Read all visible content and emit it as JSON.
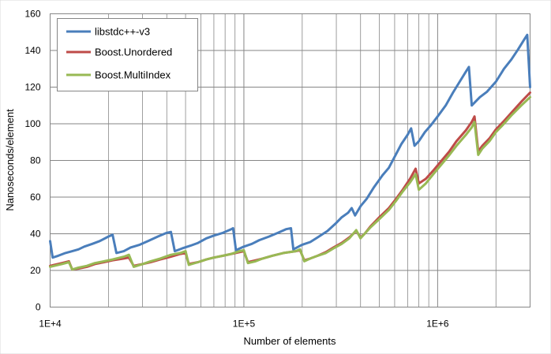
{
  "chart_data": {
    "type": "line",
    "xlabel": "Number of elements",
    "ylabel": "Nanoseconds/element",
    "x_scale": "log",
    "xlim": [
      10000,
      3000000
    ],
    "ylim": [
      0,
      160
    ],
    "x_ticks": [
      10000,
      100000,
      1000000
    ],
    "x_tick_labels": [
      "1E+4",
      "1E+5",
      "1E+6"
    ],
    "y_ticks": [
      0,
      20,
      40,
      60,
      80,
      100,
      120,
      140,
      160
    ],
    "y_tick_labels": [
      "0",
      "20",
      "40",
      "60",
      "80",
      "100",
      "120",
      "140",
      "160"
    ],
    "grid": true,
    "legend_position": "top-left",
    "series": [
      {
        "name": "libstdc++-v3",
        "color": "#4a7ebb",
        "points": [
          [
            10000,
            36
          ],
          [
            10300,
            27
          ],
          [
            11000,
            28
          ],
          [
            12000,
            29.5
          ],
          [
            13000,
            30.5
          ],
          [
            14000,
            31.5
          ],
          [
            15000,
            33
          ],
          [
            16500,
            34.5
          ],
          [
            18000,
            36
          ],
          [
            20000,
            38.5
          ],
          [
            21000,
            39.5
          ],
          [
            22000,
            29.5
          ],
          [
            24000,
            30.5
          ],
          [
            26000,
            32.5
          ],
          [
            29000,
            34
          ],
          [
            32000,
            36
          ],
          [
            36000,
            38.5
          ],
          [
            40000,
            40.5
          ],
          [
            42000,
            41
          ],
          [
            44000,
            30.5
          ],
          [
            48000,
            32
          ],
          [
            53000,
            33.5
          ],
          [
            58000,
            35
          ],
          [
            64000,
            37.5
          ],
          [
            70000,
            39
          ],
          [
            78000,
            40.5
          ],
          [
            86000,
            42.5
          ],
          [
            88000,
            43
          ],
          [
            91000,
            31
          ],
          [
            100000,
            33
          ],
          [
            110000,
            34.5
          ],
          [
            120000,
            36.5
          ],
          [
            135000,
            38.5
          ],
          [
            150000,
            40.5
          ],
          [
            165000,
            42.5
          ],
          [
            175000,
            43
          ],
          [
            180000,
            31.5
          ],
          [
            200000,
            34
          ],
          [
            220000,
            35.5
          ],
          [
            240000,
            38
          ],
          [
            270000,
            41.5
          ],
          [
            300000,
            46
          ],
          [
            320000,
            49
          ],
          [
            345000,
            51.5
          ],
          [
            360000,
            54
          ],
          [
            375000,
            50
          ],
          [
            400000,
            55
          ],
          [
            430000,
            59
          ],
          [
            470000,
            65.5
          ],
          [
            520000,
            72
          ],
          [
            560000,
            76
          ],
          [
            600000,
            82
          ],
          [
            650000,
            89
          ],
          [
            700000,
            94
          ],
          [
            730000,
            97.5
          ],
          [
            760000,
            88
          ],
          [
            800000,
            90.5
          ],
          [
            860000,
            95.5
          ],
          [
            920000,
            99
          ],
          [
            1000000,
            104
          ],
          [
            1100000,
            110
          ],
          [
            1200000,
            117
          ],
          [
            1300000,
            123
          ],
          [
            1400000,
            128.5
          ],
          [
            1450000,
            131
          ],
          [
            1500000,
            110
          ],
          [
            1650000,
            114.5
          ],
          [
            1800000,
            117.5
          ],
          [
            2000000,
            123
          ],
          [
            2200000,
            130
          ],
          [
            2400000,
            135
          ],
          [
            2600000,
            140.5
          ],
          [
            2800000,
            146
          ],
          [
            2900000,
            148.5
          ],
          [
            3000000,
            120
          ]
        ]
      },
      {
        "name": "Boost.Unordered",
        "color": "#be4b48",
        "points": [
          [
            10000,
            22.5
          ],
          [
            10500,
            23
          ],
          [
            11500,
            24
          ],
          [
            12500,
            25
          ],
          [
            13000,
            20.5
          ],
          [
            14000,
            21
          ],
          [
            15500,
            22
          ],
          [
            17000,
            23.5
          ],
          [
            19000,
            24.5
          ],
          [
            21000,
            25.5
          ],
          [
            24000,
            26.5
          ],
          [
            25500,
            27
          ],
          [
            27000,
            22.5
          ],
          [
            30000,
            23.5
          ],
          [
            33000,
            24.5
          ],
          [
            37000,
            26
          ],
          [
            42000,
            27.5
          ],
          [
            47000,
            29
          ],
          [
            50000,
            29.5
          ],
          [
            52000,
            23.5
          ],
          [
            58000,
            24.5
          ],
          [
            64000,
            26
          ],
          [
            70000,
            27
          ],
          [
            78000,
            28
          ],
          [
            86000,
            29
          ],
          [
            95000,
            30
          ],
          [
            100000,
            30.5
          ],
          [
            105000,
            24.5
          ],
          [
            115000,
            25.5
          ],
          [
            125000,
            26.5
          ],
          [
            140000,
            28
          ],
          [
            160000,
            29.5
          ],
          [
            185000,
            30.5
          ],
          [
            195000,
            31
          ],
          [
            205000,
            25.5
          ],
          [
            220000,
            26.5
          ],
          [
            240000,
            28
          ],
          [
            265000,
            30
          ],
          [
            290000,
            32.5
          ],
          [
            320000,
            35
          ],
          [
            350000,
            38
          ],
          [
            380000,
            41.5
          ],
          [
            400000,
            38
          ],
          [
            420000,
            40
          ],
          [
            450000,
            44
          ],
          [
            500000,
            49
          ],
          [
            560000,
            54
          ],
          [
            610000,
            59
          ],
          [
            660000,
            64
          ],
          [
            720000,
            70
          ],
          [
            770000,
            75.5
          ],
          [
            800000,
            67.5
          ],
          [
            870000,
            70
          ],
          [
            950000,
            74.5
          ],
          [
            1050000,
            80
          ],
          [
            1150000,
            85
          ],
          [
            1250000,
            90.5
          ],
          [
            1400000,
            96.5
          ],
          [
            1500000,
            101
          ],
          [
            1550000,
            104
          ],
          [
            1620000,
            85
          ],
          [
            1700000,
            88
          ],
          [
            1850000,
            92
          ],
          [
            2000000,
            97
          ],
          [
            2200000,
            101.5
          ],
          [
            2400000,
            106
          ],
          [
            2700000,
            112
          ],
          [
            3000000,
            117
          ]
        ]
      },
      {
        "name": "Boost.MultiIndex",
        "color": "#98b954",
        "points": [
          [
            10000,
            22
          ],
          [
            10500,
            22.5
          ],
          [
            11500,
            23.5
          ],
          [
            12500,
            24.5
          ],
          [
            13000,
            20.5
          ],
          [
            14000,
            21.5
          ],
          [
            15500,
            22.5
          ],
          [
            17000,
            24
          ],
          [
            19000,
            25
          ],
          [
            21000,
            26
          ],
          [
            24000,
            27.5
          ],
          [
            25500,
            28.5
          ],
          [
            27000,
            22
          ],
          [
            30000,
            23.5
          ],
          [
            33000,
            25
          ],
          [
            37000,
            26.5
          ],
          [
            42000,
            28.5
          ],
          [
            47000,
            29.5
          ],
          [
            50000,
            30.5
          ],
          [
            52000,
            23
          ],
          [
            58000,
            24.5
          ],
          [
            64000,
            26
          ],
          [
            70000,
            27
          ],
          [
            78000,
            28
          ],
          [
            86000,
            29
          ],
          [
            95000,
            30.5
          ],
          [
            100000,
            31
          ],
          [
            105000,
            24
          ],
          [
            115000,
            25
          ],
          [
            125000,
            26.5
          ],
          [
            140000,
            28
          ],
          [
            160000,
            29.5
          ],
          [
            185000,
            30.5
          ],
          [
            195000,
            31.5
          ],
          [
            205000,
            25
          ],
          [
            220000,
            26.5
          ],
          [
            240000,
            28
          ],
          [
            265000,
            29.5
          ],
          [
            290000,
            32
          ],
          [
            320000,
            34.5
          ],
          [
            350000,
            37.5
          ],
          [
            380000,
            42
          ],
          [
            400000,
            37.5
          ],
          [
            420000,
            40
          ],
          [
            450000,
            43.5
          ],
          [
            500000,
            48
          ],
          [
            560000,
            53
          ],
          [
            610000,
            58
          ],
          [
            660000,
            63
          ],
          [
            720000,
            68
          ],
          [
            770000,
            72.5
          ],
          [
            800000,
            64
          ],
          [
            870000,
            67.5
          ],
          [
            950000,
            72.5
          ],
          [
            1050000,
            78
          ],
          [
            1150000,
            83
          ],
          [
            1250000,
            88
          ],
          [
            1400000,
            94
          ],
          [
            1500000,
            98
          ],
          [
            1550000,
            101
          ],
          [
            1620000,
            83
          ],
          [
            1700000,
            86.5
          ],
          [
            1850000,
            90.5
          ],
          [
            2000000,
            95.5
          ],
          [
            2200000,
            100
          ],
          [
            2400000,
            104.5
          ],
          [
            2700000,
            110
          ],
          [
            3000000,
            114.5
          ]
        ]
      }
    ]
  }
}
